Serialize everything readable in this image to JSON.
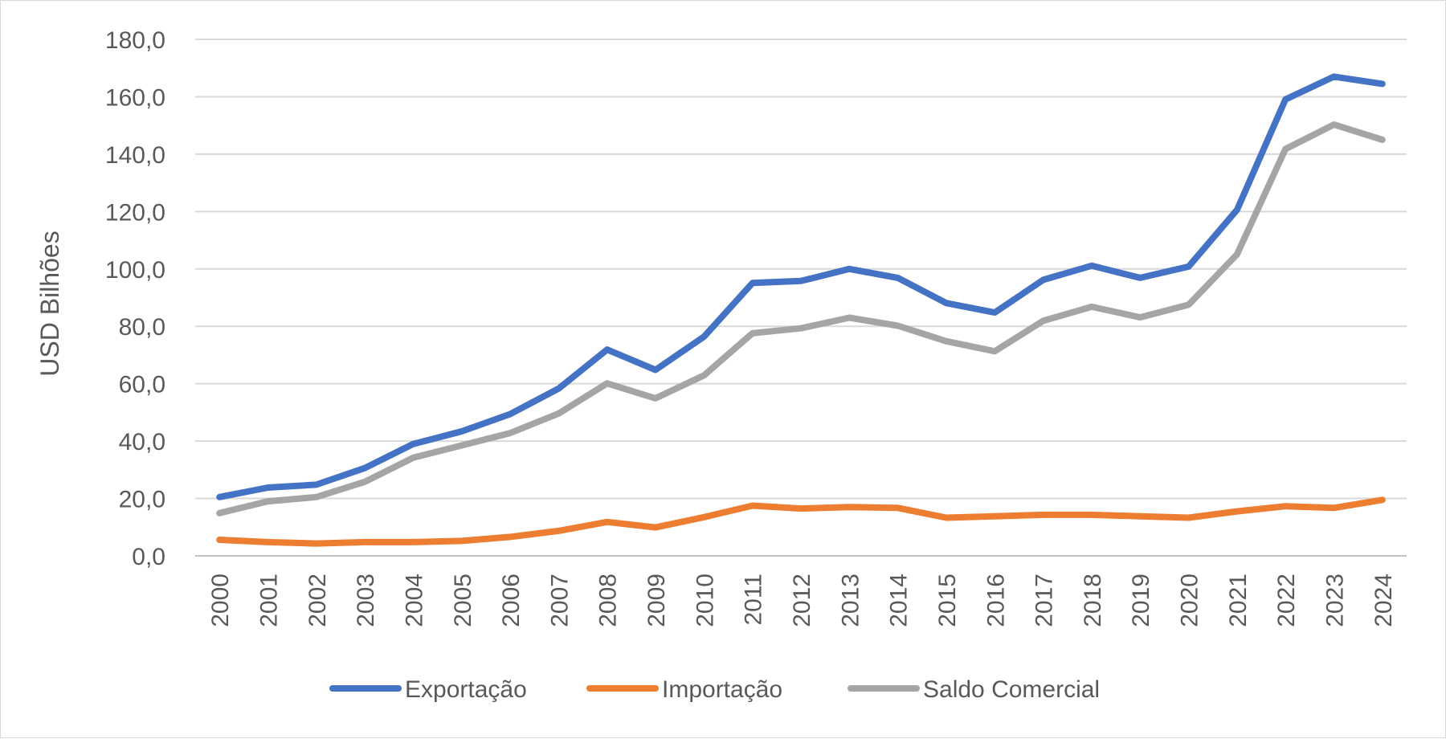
{
  "chart_data": {
    "type": "line",
    "title": "",
    "xlabel": "",
    "ylabel": "USD Bilhões",
    "ylim": [
      0,
      180
    ],
    "ytick_step": 20,
    "ytick_labels": [
      "0,0",
      "20,0",
      "40,0",
      "60,0",
      "80,0",
      "100,0",
      "120,0",
      "140,0",
      "160,0",
      "180,0"
    ],
    "grid": true,
    "legend_position": "bottom",
    "categories": [
      "2000",
      "2001",
      "2002",
      "2003",
      "2004",
      "2005",
      "2006",
      "2007",
      "2008",
      "2009",
      "2010",
      "2011",
      "2012",
      "2013",
      "2014",
      "2015",
      "2016",
      "2017",
      "2018",
      "2019",
      "2020",
      "2021",
      "2022",
      "2023",
      "2024"
    ],
    "series": [
      {
        "name": "Exportação",
        "color": "#4472c4",
        "values": [
          20.5,
          23.8,
          24.8,
          30.6,
          39.0,
          43.4,
          49.4,
          58.3,
          71.9,
          64.8,
          76.4,
          95.1,
          95.8,
          100.0,
          96.9,
          88.1,
          84.8,
          96.2,
          101.1,
          96.9,
          100.8,
          120.6,
          159.1,
          167.0,
          164.5
        ]
      },
      {
        "name": "Importação",
        "color": "#ed7d31",
        "values": [
          5.6,
          4.8,
          4.3,
          4.8,
          4.8,
          5.2,
          6.6,
          8.7,
          11.8,
          9.9,
          13.5,
          17.5,
          16.5,
          17.0,
          16.7,
          13.3,
          13.8,
          14.3,
          14.3,
          13.8,
          13.3,
          15.5,
          17.3,
          16.7,
          19.5
        ]
      },
      {
        "name": "Saldo Comercial",
        "color": "#a5a5a5",
        "values": [
          14.9,
          19.0,
          20.5,
          25.8,
          34.2,
          38.5,
          42.8,
          49.6,
          60.1,
          54.9,
          62.9,
          77.6,
          79.3,
          83.0,
          80.2,
          74.8,
          71.3,
          81.9,
          86.8,
          83.1,
          87.5,
          105.1,
          141.8,
          150.3,
          145.0
        ]
      }
    ]
  }
}
